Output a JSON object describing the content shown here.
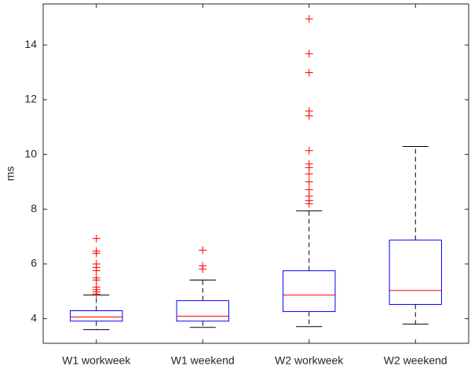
{
  "chart_data": {
    "type": "box",
    "ylabel": "ms",
    "categories": [
      "W1 workweek",
      "W1 weekend",
      "W2 workweek",
      "W2 weekend"
    ],
    "boxes": [
      {
        "min": 3.6,
        "q1": 3.91,
        "median": 4.06,
        "q3": 4.29,
        "max": 4.86,
        "outliers": [
          6.93,
          6.47,
          6.39,
          6.0,
          5.87,
          5.75,
          5.49,
          5.41,
          5.15,
          5.06,
          4.98,
          4.9
        ]
      },
      {
        "min": 3.68,
        "q1": 3.91,
        "median": 4.09,
        "q3": 4.66,
        "max": 5.41,
        "outliers": [
          6.5,
          5.93,
          5.81
        ]
      },
      {
        "min": 3.71,
        "q1": 4.26,
        "median": 4.86,
        "q3": 5.75,
        "max": 7.94,
        "outliers": [
          14.95,
          13.68,
          12.99,
          11.59,
          11.41,
          10.14,
          9.65,
          9.52,
          9.29,
          9.0,
          8.71,
          8.48,
          8.31,
          8.2
        ]
      },
      {
        "min": 3.8,
        "q1": 4.52,
        "median": 5.03,
        "q3": 6.87,
        "max": 10.29,
        "outliers": []
      }
    ],
    "ylim": [
      3.1,
      15.5
    ],
    "yticks": [
      4,
      6,
      8,
      10,
      12,
      14
    ],
    "box_color": "#0000ff",
    "median_color": "#ff0000",
    "whisker_color": "#000000",
    "outlier_color": "#ff0000"
  }
}
